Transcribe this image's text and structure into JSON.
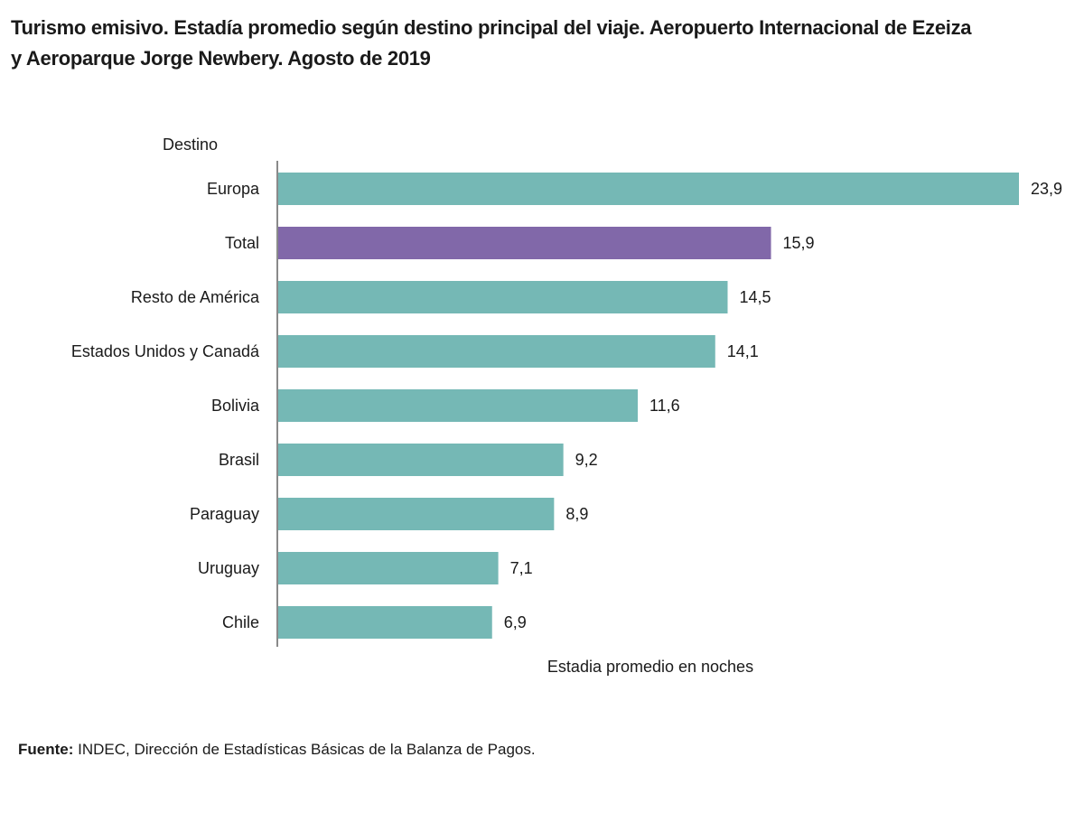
{
  "title": {
    "line1": "Turismo emisivo. Estadía promedio según destino principal del viaje. Aeropuerto Internacional de Ezeiza",
    "line2": "y Aeroparque Jorge Newbery. Agosto de 2019"
  },
  "chart_data": {
    "type": "bar",
    "orientation": "horizontal",
    "y_axis_title": "Destino",
    "xlabel": "Estadia promedio  en noches",
    "categories": [
      "Europa",
      "Total",
      "Resto de América",
      "Estados Unidos y Canadá",
      "Bolivia",
      "Brasil",
      "Paraguay",
      "Uruguay",
      "Chile"
    ],
    "values": [
      23.9,
      15.9,
      14.5,
      14.1,
      11.6,
      9.2,
      8.9,
      7.1,
      6.9
    ],
    "value_labels": [
      "23,9",
      "15,9",
      "14,5",
      "14,1",
      "11,6",
      "9,2",
      "8,9",
      "7,1",
      "6,9"
    ],
    "highlight_category": "Total",
    "xlim": [
      0,
      23.9
    ],
    "grid": false,
    "legend": "none",
    "colors": {
      "bar": "#75b8b5",
      "highlight": "#8168a9",
      "axis": "#8a8a8a"
    }
  },
  "source": {
    "label": "Fuente:",
    "text": " INDEC, Dirección de Estadísticas Básicas de la Balanza de Pagos."
  }
}
